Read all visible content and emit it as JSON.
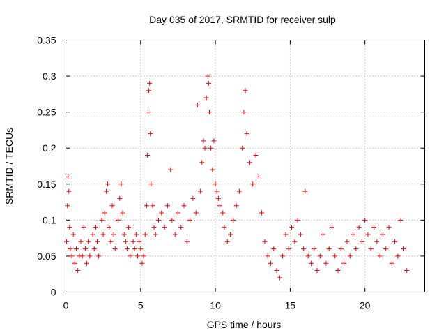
{
  "chart_data": {
    "type": "scatter",
    "title": "Day 035 of 2017, SRMTID for receiver sulp",
    "xlabel": "GPS time / hours",
    "ylabel": "SRMTID / TECUs",
    "xlim": [
      0,
      24
    ],
    "ylim": [
      0,
      0.35
    ],
    "xticks": [
      0,
      5,
      10,
      15,
      20
    ],
    "xtick_labels": [
      "0",
      "5",
      "10",
      "15",
      "20"
    ],
    "yticks": [
      0,
      0.05,
      0.1,
      0.15,
      0.2,
      0.25,
      0.3,
      0.35
    ],
    "ytick_labels": [
      "0",
      "0.05",
      "0.1",
      "0.15",
      "0.2",
      "0.25",
      "0.3",
      "0.35"
    ],
    "grid": true,
    "marker": "+",
    "color": "#ff0000",
    "series": [
      {
        "name": "SRMTID",
        "points": [
          [
            0.05,
            0.07
          ],
          [
            0.1,
            0.12
          ],
          [
            0.15,
            0.16
          ],
          [
            0.2,
            0.14
          ],
          [
            0.25,
            0.09
          ],
          [
            0.3,
            0.06
          ],
          [
            0.4,
            0.05
          ],
          [
            0.5,
            0.08
          ],
          [
            0.6,
            0.04
          ],
          [
            0.7,
            0.06
          ],
          [
            0.8,
            0.03
          ],
          [
            0.9,
            0.05
          ],
          [
            1.0,
            0.07
          ],
          [
            1.1,
            0.05
          ],
          [
            1.2,
            0.09
          ],
          [
            1.3,
            0.06
          ],
          [
            1.4,
            0.04
          ],
          [
            1.5,
            0.07
          ],
          [
            1.6,
            0.05
          ],
          [
            1.8,
            0.08
          ],
          [
            1.9,
            0.06
          ],
          [
            2.0,
            0.09
          ],
          [
            2.1,
            0.07
          ],
          [
            2.2,
            0.05
          ],
          [
            2.4,
            0.1
          ],
          [
            2.5,
            0.08
          ],
          [
            2.6,
            0.11
          ],
          [
            2.7,
            0.14
          ],
          [
            2.8,
            0.15
          ],
          [
            2.9,
            0.09
          ],
          [
            3.0,
            0.07
          ],
          [
            3.1,
            0.12
          ],
          [
            3.2,
            0.08
          ],
          [
            3.3,
            0.06
          ],
          [
            3.5,
            0.1
          ],
          [
            3.6,
            0.13
          ],
          [
            3.7,
            0.15
          ],
          [
            3.8,
            0.11
          ],
          [
            3.9,
            0.08
          ],
          [
            4.0,
            0.07
          ],
          [
            4.1,
            0.06
          ],
          [
            4.2,
            0.09
          ],
          [
            4.3,
            0.05
          ],
          [
            4.5,
            0.07
          ],
          [
            4.6,
            0.06
          ],
          [
            4.7,
            0.08
          ],
          [
            4.8,
            0.05
          ],
          [
            4.9,
            0.07
          ],
          [
            5.0,
            0.06
          ],
          [
            5.1,
            0.04
          ],
          [
            5.2,
            0.05
          ],
          [
            5.3,
            0.08
          ],
          [
            5.4,
            0.12
          ],
          [
            5.45,
            0.19
          ],
          [
            5.5,
            0.25
          ],
          [
            5.55,
            0.28
          ],
          [
            5.6,
            0.29
          ],
          [
            5.65,
            0.22
          ],
          [
            5.7,
            0.15
          ],
          [
            5.8,
            0.12
          ],
          [
            5.9,
            0.09
          ],
          [
            6.0,
            0.08
          ],
          [
            6.2,
            0.1
          ],
          [
            6.4,
            0.11
          ],
          [
            6.6,
            0.09
          ],
          [
            6.8,
            0.12
          ],
          [
            7.0,
            0.17
          ],
          [
            7.1,
            0.1
          ],
          [
            7.3,
            0.08
          ],
          [
            7.5,
            0.11
          ],
          [
            7.7,
            0.09
          ],
          [
            7.9,
            0.12
          ],
          [
            8.1,
            0.07
          ],
          [
            8.3,
            0.1
          ],
          [
            8.5,
            0.13
          ],
          [
            8.7,
            0.11
          ],
          [
            8.8,
            0.26
          ],
          [
            9.0,
            0.14
          ],
          [
            9.1,
            0.18
          ],
          [
            9.2,
            0.21
          ],
          [
            9.3,
            0.2
          ],
          [
            9.4,
            0.27
          ],
          [
            9.5,
            0.3
          ],
          [
            9.55,
            0.29
          ],
          [
            9.6,
            0.25
          ],
          [
            9.7,
            0.2
          ],
          [
            9.8,
            0.17
          ],
          [
            9.9,
            0.21
          ],
          [
            10.0,
            0.15
          ],
          [
            10.1,
            0.14
          ],
          [
            10.2,
            0.13
          ],
          [
            10.3,
            0.12
          ],
          [
            10.5,
            0.11
          ],
          [
            10.6,
            0.09
          ],
          [
            10.8,
            0.07
          ],
          [
            11.0,
            0.08
          ],
          [
            11.2,
            0.1
          ],
          [
            11.4,
            0.12
          ],
          [
            11.6,
            0.14
          ],
          [
            11.8,
            0.2
          ],
          [
            11.9,
            0.25
          ],
          [
            12.0,
            0.28
          ],
          [
            12.1,
            0.22
          ],
          [
            12.3,
            0.18
          ],
          [
            12.5,
            0.15
          ],
          [
            12.7,
            0.19
          ],
          [
            12.9,
            0.16
          ],
          [
            13.1,
            0.11
          ],
          [
            13.3,
            0.07
          ],
          [
            13.5,
            0.05
          ],
          [
            13.7,
            0.04
          ],
          [
            13.9,
            0.06
          ],
          [
            14.1,
            0.03
          ],
          [
            14.3,
            0.02
          ],
          [
            14.5,
            0.05
          ],
          [
            14.7,
            0.08
          ],
          [
            14.9,
            0.06
          ],
          [
            15.1,
            0.09
          ],
          [
            15.3,
            0.07
          ],
          [
            15.5,
            0.1
          ],
          [
            15.7,
            0.08
          ],
          [
            15.9,
            0.06
          ],
          [
            16.0,
            0.14
          ],
          [
            16.2,
            0.05
          ],
          [
            16.4,
            0.04
          ],
          [
            16.6,
            0.06
          ],
          [
            16.8,
            0.03
          ],
          [
            17.0,
            0.05
          ],
          [
            17.2,
            0.08
          ],
          [
            17.4,
            0.04
          ],
          [
            17.6,
            0.06
          ],
          [
            17.8,
            0.09
          ],
          [
            18.0,
            0.05
          ],
          [
            18.2,
            0.03
          ],
          [
            18.4,
            0.06
          ],
          [
            18.6,
            0.04
          ],
          [
            18.8,
            0.07
          ],
          [
            19.0,
            0.05
          ],
          [
            19.2,
            0.08
          ],
          [
            19.4,
            0.06
          ],
          [
            19.6,
            0.09
          ],
          [
            19.8,
            0.07
          ],
          [
            20.0,
            0.1
          ],
          [
            20.2,
            0.08
          ],
          [
            20.4,
            0.06
          ],
          [
            20.6,
            0.09
          ],
          [
            20.8,
            0.07
          ],
          [
            21.0,
            0.05
          ],
          [
            21.2,
            0.08
          ],
          [
            21.4,
            0.06
          ],
          [
            21.6,
            0.09
          ],
          [
            21.8,
            0.04
          ],
          [
            22.0,
            0.07
          ],
          [
            22.2,
            0.05
          ],
          [
            22.4,
            0.1
          ],
          [
            22.6,
            0.06
          ],
          [
            22.8,
            0.03
          ]
        ]
      }
    ]
  }
}
